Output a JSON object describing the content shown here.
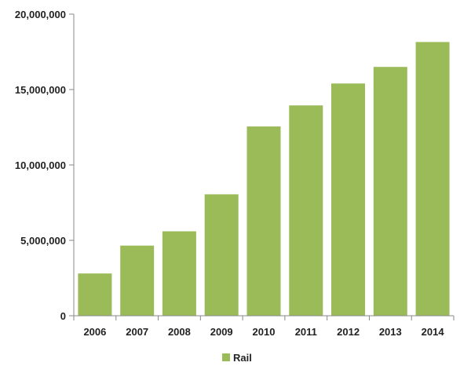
{
  "chart_data": {
    "type": "bar",
    "categories": [
      "2006",
      "2007",
      "2008",
      "2009",
      "2010",
      "2011",
      "2012",
      "2013",
      "2014"
    ],
    "series": [
      {
        "name": "Rail",
        "color": "#9bbb59",
        "values": [
          2800000,
          4650000,
          5600000,
          8050000,
          12550000,
          13950000,
          15400000,
          16500000,
          18150000
        ]
      }
    ],
    "y_ticks": [
      "0",
      "5,000,000",
      "10,000,000",
      "15,000,000",
      "20,000,000"
    ],
    "ylim": [
      0,
      20000000
    ],
    "grid": false,
    "legend_position": "bottom"
  }
}
